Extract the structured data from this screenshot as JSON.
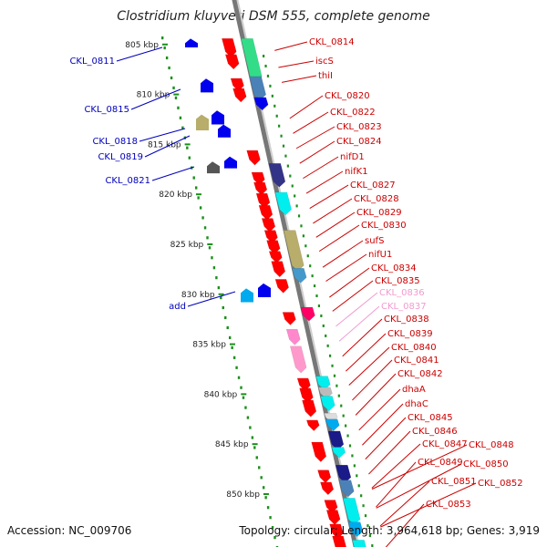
{
  "title": "Clostridium kluyveri DSM 555, complete genome",
  "footer": {
    "accession": "Accession: NC_009706",
    "info": "Topology: circular; Length: 3,964,618 bp; Genes: 3,919"
  },
  "colors": {
    "backbone": "#888888",
    "tick": "#1a8f1a",
    "forward_label": "#cc0000",
    "reverse_label": "#0000bb",
    "pink_label": "#f29ad0"
  },
  "scale_labels": [
    {
      "kbp": 805,
      "label": "805 kbp"
    },
    {
      "kbp": 810,
      "label": "810 kbp"
    },
    {
      "kbp": 815,
      "label": "815 kbp"
    },
    {
      "kbp": 820,
      "label": "820 kbp"
    },
    {
      "kbp": 825,
      "label": "825 kbp"
    },
    {
      "kbp": 830,
      "label": "830 kbp"
    },
    {
      "kbp": 835,
      "label": "835 kbp"
    },
    {
      "kbp": 840,
      "label": "840 kbp"
    },
    {
      "kbp": 845,
      "label": "845 kbp"
    },
    {
      "kbp": 850,
      "label": "850 kbp"
    }
  ],
  "forward_genes": [
    {
      "name": "CKL_0814",
      "kbp": 805.6,
      "color": "#cc0000"
    },
    {
      "name": "iscS",
      "kbp": 807.3,
      "color": "#cc0000"
    },
    {
      "name": "thiI",
      "kbp": 808.8,
      "color": "#cc0000"
    },
    {
      "name": "CKL_0820",
      "kbp": 812.4,
      "color": "#cc0000"
    },
    {
      "name": "CKL_0822",
      "kbp": 813.9,
      "color": "#cc0000"
    },
    {
      "name": "CKL_0823",
      "kbp": 815.4,
      "color": "#cc0000"
    },
    {
      "name": "CKL_0824",
      "kbp": 816.9,
      "color": "#cc0000"
    },
    {
      "name": "nifD1",
      "kbp": 818.4,
      "color": "#cc0000"
    },
    {
      "name": "nifK1",
      "kbp": 819.9,
      "color": "#cc0000"
    },
    {
      "name": "CKL_0827",
      "kbp": 821.4,
      "color": "#cc0000"
    },
    {
      "name": "CKL_0828",
      "kbp": 822.9,
      "color": "#cc0000"
    },
    {
      "name": "CKL_0829",
      "kbp": 824.3,
      "color": "#cc0000"
    },
    {
      "name": "CKL_0830",
      "kbp": 825.7,
      "color": "#cc0000"
    },
    {
      "name": "sufS",
      "kbp": 827.3,
      "color": "#cc0000"
    },
    {
      "name": "nifU1",
      "kbp": 828.7,
      "color": "#cc0000"
    },
    {
      "name": "CKL_0834",
      "kbp": 830.3,
      "color": "#cc0000"
    },
    {
      "name": "CKL_0835",
      "kbp": 831.7,
      "color": "#cc0000"
    },
    {
      "name": "CKL_0836",
      "kbp": 833.2,
      "color": "#f29ad0"
    },
    {
      "name": "CKL_0837",
      "kbp": 834.7,
      "color": "#f29ad0"
    },
    {
      "name": "CKL_0838",
      "kbp": 836.2,
      "color": "#cc0000"
    },
    {
      "name": "CKL_0839",
      "kbp": 837.7,
      "color": "#cc0000"
    },
    {
      "name": "CKL_0840",
      "kbp": 839.1,
      "color": "#cc0000"
    },
    {
      "name": "CKL_0841",
      "kbp": 840.6,
      "color": "#cc0000"
    },
    {
      "name": "CKL_0842",
      "kbp": 842.1,
      "color": "#cc0000"
    },
    {
      "name": "dhaA",
      "kbp": 843.6,
      "color": "#cc0000"
    },
    {
      "name": "dhaC",
      "kbp": 845.1,
      "color": "#cc0000"
    },
    {
      "name": "CKL_0845",
      "kbp": 846.5,
      "color": "#cc0000"
    },
    {
      "name": "CKL_0846",
      "kbp": 848.0,
      "color": "#cc0000"
    },
    {
      "name": "CKL_0847",
      "kbp": 849.4,
      "color": "#cc0000"
    },
    {
      "name": "CKL_0848",
      "kbp": 849.5,
      "color": "#cc0000"
    },
    {
      "name": "CKL_0849",
      "kbp": 851.3,
      "color": "#cc0000"
    },
    {
      "name": "CKL_0850",
      "kbp": 851.4,
      "color": "#cc0000"
    },
    {
      "name": "CKL_0851",
      "kbp": 853.2,
      "color": "#cc0000"
    },
    {
      "name": "CKL_0852",
      "kbp": 853.3,
      "color": "#cc0000"
    },
    {
      "name": "CKL_0853",
      "kbp": 855.4,
      "color": "#cc0000"
    }
  ],
  "reverse_genes": [
    {
      "name": "CKL_0811",
      "kbp": 805.5,
      "color": "#0000bb"
    },
    {
      "name": "CKL_0815",
      "kbp": 811.2,
      "color": "#0000bb"
    },
    {
      "name": "CKL_0818",
      "kbp": 815.4,
      "color": "#0000bb"
    },
    {
      "name": "CKL_0819",
      "kbp": 816.6,
      "color": "#0000bb"
    },
    {
      "name": "CKL_0821",
      "kbp": 819.2,
      "color": "#0000bb"
    },
    {
      "name": "add",
      "kbp": 830.8,
      "color": "#0000bb"
    }
  ]
}
